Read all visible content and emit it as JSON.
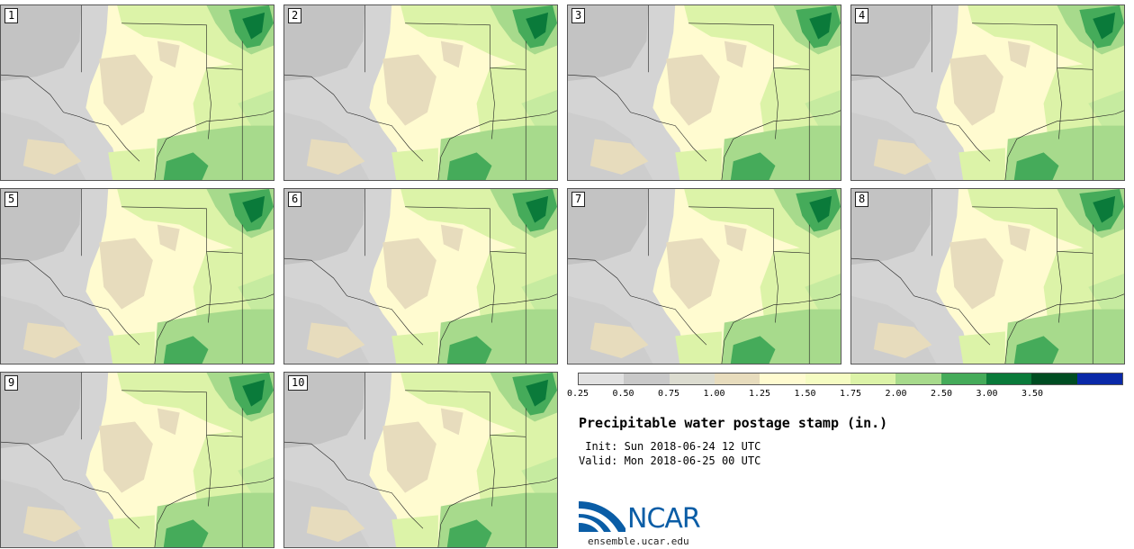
{
  "panels": [
    {
      "label": "1"
    },
    {
      "label": "2"
    },
    {
      "label": "3"
    },
    {
      "label": "4"
    },
    {
      "label": "5"
    },
    {
      "label": "6"
    },
    {
      "label": "7"
    },
    {
      "label": "8"
    },
    {
      "label": "9"
    },
    {
      "label": "10"
    }
  ],
  "colorbar": {
    "ticks": [
      "0.25",
      "0.50",
      "0.75",
      "1.00",
      "1.25",
      "1.50",
      "1.75",
      "2.00",
      "2.50",
      "3.00",
      "3.50"
    ],
    "colors": [
      "#e1e1e1",
      "#c9c9c9",
      "#dcdcd0",
      "#e7dcbd",
      "#fffbd0",
      "#f5fcc2",
      "#dcf3a8",
      "#a7da8c",
      "#45ab5a",
      "#0a7a3a",
      "#004d22",
      "#0a29a8"
    ]
  },
  "title": "Precipitable water postage stamp (in.)",
  "init": " Init: Sun 2018-06-24 12 UTC",
  "valid": "Valid: Mon 2018-06-25 00 UTC",
  "logo": {
    "text": "NCAR",
    "site": "ensemble.ucar.edu"
  }
}
